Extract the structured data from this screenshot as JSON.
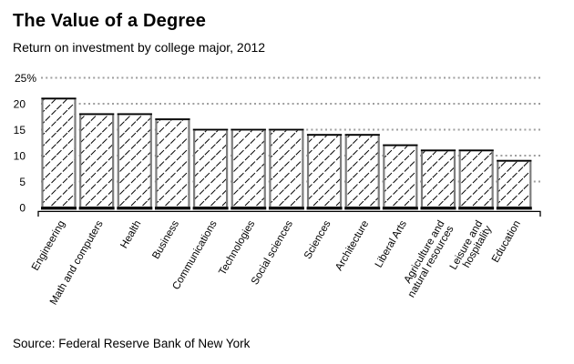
{
  "header": {
    "title": "The Value of a Degree",
    "subtitle": "Return on investment by college major, 2012"
  },
  "footer": {
    "source": "Source: Federal Reserve Bank of New York"
  },
  "chart_data": {
    "type": "bar",
    "title": "The Value of a Degree",
    "subtitle": "Return on investment by college major, 2012",
    "categories": [
      "Engineering",
      "Math and computers",
      "Health",
      "Business",
      "Communications",
      "Technologies",
      "Social sciences",
      "Sciences",
      "Architecture",
      "Liberal Arts",
      "Agriculture and\nnatural resources",
      "Leisure and\nhospitality",
      "Education"
    ],
    "values": [
      21,
      18,
      18,
      17,
      15,
      15,
      15,
      14,
      14,
      12,
      11,
      11,
      9
    ],
    "value_unit": "%",
    "xlabel": "",
    "ylabel": "",
    "ylim": [
      0,
      25
    ],
    "yticks": [
      0,
      5,
      10,
      15,
      20,
      25
    ],
    "ytick_labels": [
      "0",
      "5",
      "10",
      "15",
      "20",
      "25%"
    ],
    "grid": "horizontal-dotted",
    "legend": "none",
    "x_label_rotation_deg": -60,
    "styles": {
      "background": "#ffffff",
      "bar_fill": "#ffffff",
      "bar_hatch": "diagonal-forward",
      "hatch_color": "#000000",
      "bar_stroke": "#7d7d7d",
      "bar_top_edge": "#000000",
      "baseline_color": "#000000",
      "gridline_color": "#9e9e9e",
      "axis_color": "#000000",
      "text_color": "#000000"
    }
  }
}
